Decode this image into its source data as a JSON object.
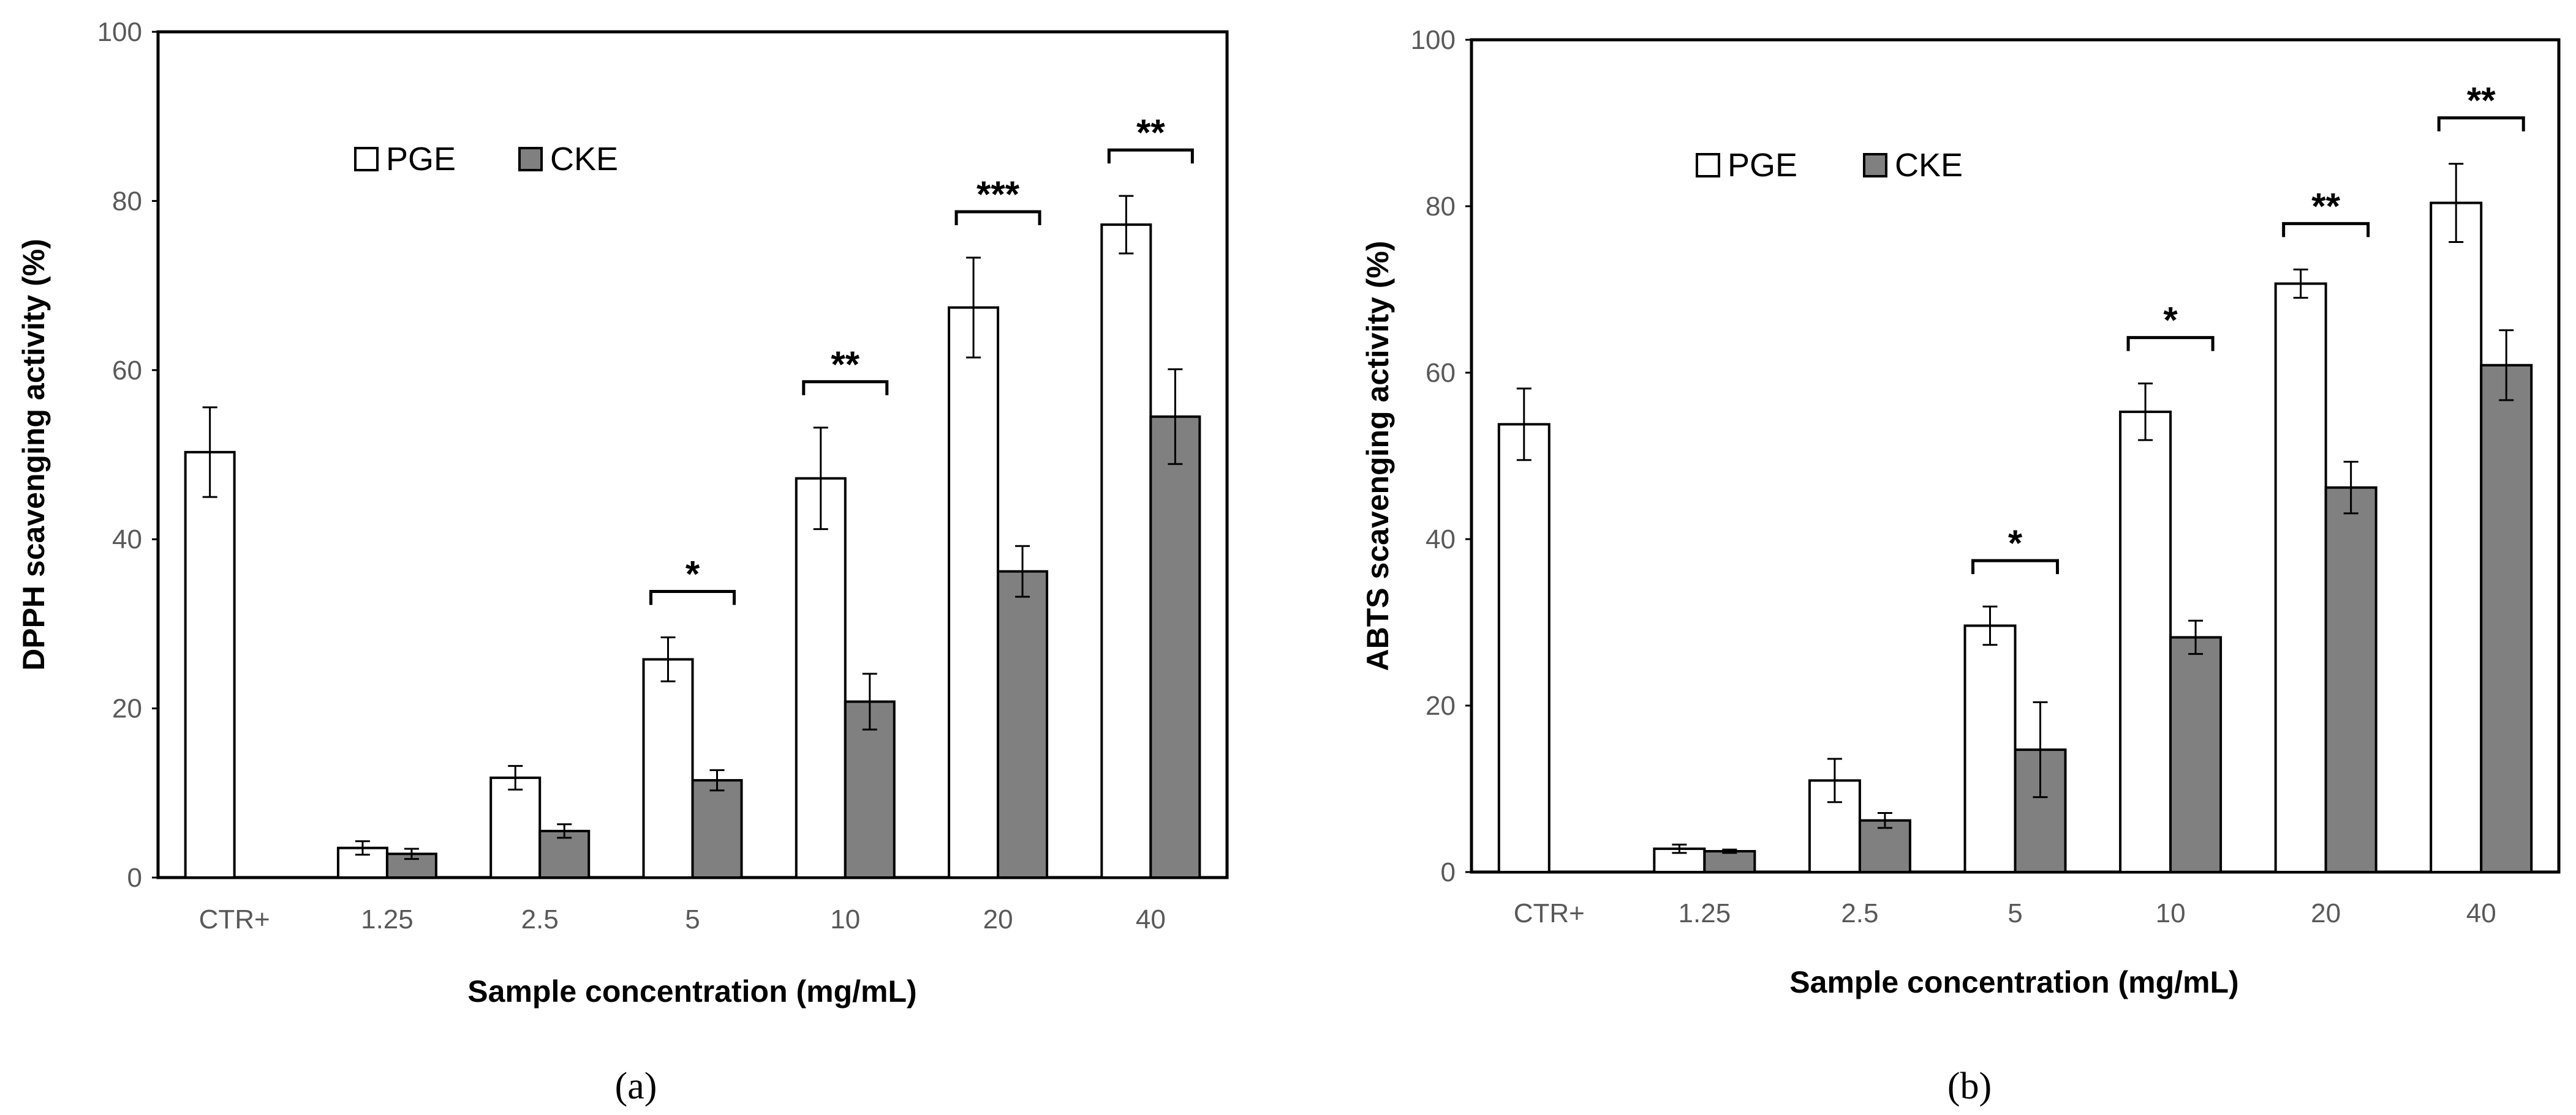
{
  "chart_data": [
    {
      "type": "bar",
      "panel_label": "(a)",
      "categories": [
        "CTR+",
        "1.25",
        "2.5",
        "5",
        "10",
        "20",
        "40"
      ],
      "series": [
        {
          "name": "PGE",
          "color": "#ffffff",
          "values": [
            50.3,
            3.5,
            11.8,
            25.8,
            47.2,
            67.4,
            77.2
          ],
          "errors": [
            5.3,
            0.8,
            1.4,
            2.6,
            6.0,
            5.9,
            3.4
          ]
        },
        {
          "name": "CKE",
          "color": "#808080",
          "values": [
            null,
            2.8,
            5.5,
            11.5,
            20.8,
            36.2,
            54.5
          ],
          "errors": [
            null,
            0.6,
            0.8,
            1.2,
            3.3,
            3.0,
            5.6
          ]
        }
      ],
      "significance": [
        "",
        "",
        "",
        "*",
        "**",
        "***",
        "**"
      ],
      "ylabel": "DPPH scavenging activity  (%)",
      "xlabel": "Sample concentration (mg/mL)",
      "ylim": [
        0,
        100
      ],
      "yticks": [
        0,
        20,
        40,
        60,
        80,
        100
      ],
      "legend": [
        "PGE",
        "CKE"
      ],
      "legend_position": "top-left"
    },
    {
      "type": "bar",
      "panel_label": "(b)",
      "categories": [
        "CTR+",
        "1.25",
        "2.5",
        "5",
        "10",
        "20",
        "40"
      ],
      "series": [
        {
          "name": "PGE",
          "color": "#ffffff",
          "values": [
            53.8,
            2.8,
            11.0,
            29.6,
            55.3,
            70.7,
            80.4
          ],
          "errors": [
            4.3,
            0.5,
            2.6,
            2.3,
            3.4,
            1.7,
            4.7
          ]
        },
        {
          "name": "CKE",
          "color": "#808080",
          "values": [
            null,
            2.5,
            6.2,
            14.7,
            28.2,
            46.2,
            60.9
          ],
          "errors": [
            null,
            0.2,
            0.9,
            5.7,
            2.0,
            3.1,
            4.2
          ]
        }
      ],
      "significance": [
        "",
        "",
        "",
        "*",
        "*",
        "**",
        "**"
      ],
      "ylabel": "ABTS scavenging activity  (%)",
      "xlabel": "Sample concentration (mg/mL)",
      "ylim": [
        0,
        100
      ],
      "yticks": [
        0,
        20,
        40,
        60,
        80,
        100
      ],
      "legend": [
        "PGE",
        "CKE"
      ],
      "legend_position": "top-left"
    }
  ]
}
